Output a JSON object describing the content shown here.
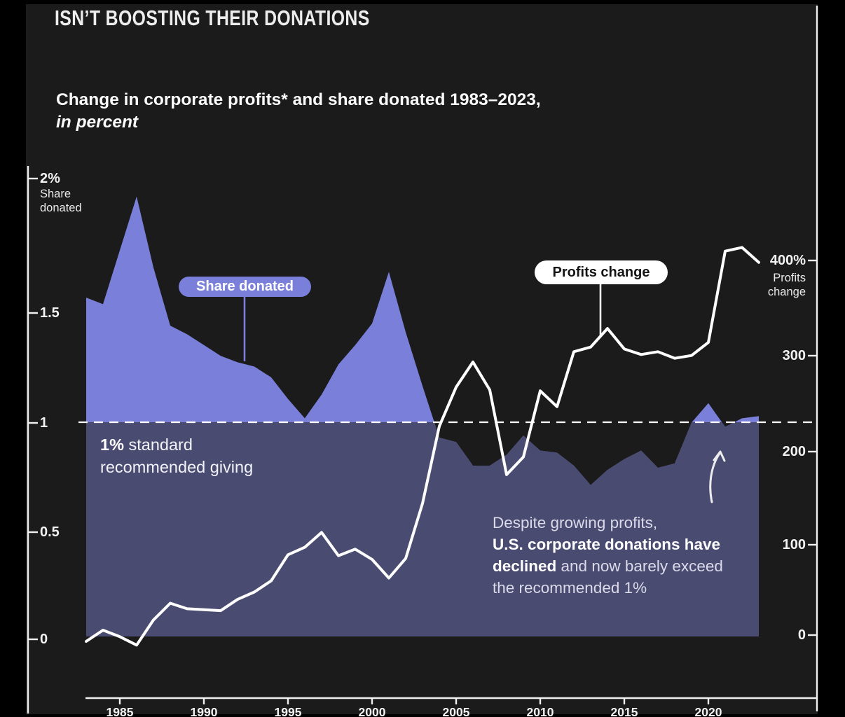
{
  "header": {
    "title": "ISN’T BOOSTING THEIR DONATIONS",
    "subtitle": "Change in corporate profits* and share donated 1983–2023,",
    "subtitle_emphasis": "in percent"
  },
  "left_axis": {
    "unit_label_lines": [
      "Share",
      "donated"
    ],
    "ticks": [
      "2%",
      "1.5",
      "1",
      "0.5",
      "0"
    ]
  },
  "right_axis": {
    "unit_label_lines": [
      "Profits",
      "change"
    ],
    "ticks": [
      "400%",
      "300",
      "200",
      "100",
      "0"
    ]
  },
  "x_axis": {
    "ticks": [
      "1985",
      "1990",
      "1995",
      "2000",
      "2005",
      "2010",
      "2015",
      "2020"
    ]
  },
  "annotations": {
    "share_pill": "Share donated",
    "profits_pill": "Profits change",
    "standard_line1_bold": "1%",
    "standard_line1_rest": " standard",
    "standard_line2": "recommended giving",
    "despite_line1": "Despite growing profits,",
    "despite_line2_bold": "U.S. corporate donations have",
    "despite_line3_bold": "declined",
    "despite_line3_rest": " and now barely exceed",
    "despite_line4": "the recommended 1%"
  },
  "colors": {
    "background": "#000000",
    "card": "#1b1b1b",
    "area_bright": "#7A80D9",
    "area_muted": "#4A4B70",
    "line_white": "#FFFFFF",
    "text": "#F2F2F2"
  },
  "chart_data": {
    "type": "combo",
    "title": "Change in corporate profits and share donated 1983–2023, in percent",
    "years": [
      1983,
      1984,
      1985,
      1986,
      1987,
      1988,
      1989,
      1990,
      1991,
      1992,
      1993,
      1994,
      1995,
      1996,
      1997,
      1998,
      1999,
      2000,
      2001,
      2002,
      2003,
      2004,
      2005,
      2006,
      2007,
      2008,
      2009,
      2010,
      2011,
      2012,
      2013,
      2014,
      2015,
      2016,
      2017,
      2018,
      2019,
      2020,
      2021,
      2022,
      2023
    ],
    "series": [
      {
        "name": "Share donated",
        "type": "area",
        "axis": "left",
        "unit": "% of profits donated",
        "values": [
          1.58,
          1.55,
          1.8,
          2.05,
          1.72,
          1.45,
          1.41,
          1.36,
          1.31,
          1.28,
          1.26,
          1.21,
          1.11,
          1.02,
          1.13,
          1.27,
          1.36,
          1.46,
          1.7,
          1.42,
          1.17,
          0.93,
          0.91,
          0.8,
          0.8,
          0.85,
          0.94,
          0.87,
          0.86,
          0.8,
          0.71,
          0.78,
          0.83,
          0.87,
          0.79,
          0.81,
          1.0,
          1.09,
          0.98,
          1.02,
          1.03
        ]
      },
      {
        "name": "Profits change",
        "type": "line",
        "axis": "right",
        "unit": "% change",
        "values": [
          -6,
          6,
          -1,
          -10,
          17,
          35,
          29,
          28,
          27,
          39,
          47,
          59,
          87,
          95,
          111,
          86,
          93,
          82,
          62,
          83,
          142,
          225,
          267,
          294,
          264,
          173,
          192,
          263,
          246,
          305,
          310,
          330,
          308,
          302,
          305,
          298,
          301,
          315,
          413,
          417,
          401
        ]
      }
    ],
    "left_axis": {
      "label": "Share donated",
      "unit": "%",
      "ticks": [
        2,
        1.5,
        1,
        0.5,
        0
      ],
      "range": [
        0,
        2
      ]
    },
    "right_axis": {
      "label": "Profits change",
      "unit": "%",
      "ticks": [
        400,
        300,
        200,
        100,
        0
      ],
      "range": [
        0,
        400
      ]
    },
    "x_ticks": [
      1985,
      1990,
      1995,
      2000,
      2005,
      2010,
      2015,
      2020
    ],
    "reference_line": {
      "axis": "left",
      "value": 1,
      "label": "1% standard recommended giving",
      "style": "dashed"
    },
    "legend_position": "inline-labels",
    "grid": false
  }
}
